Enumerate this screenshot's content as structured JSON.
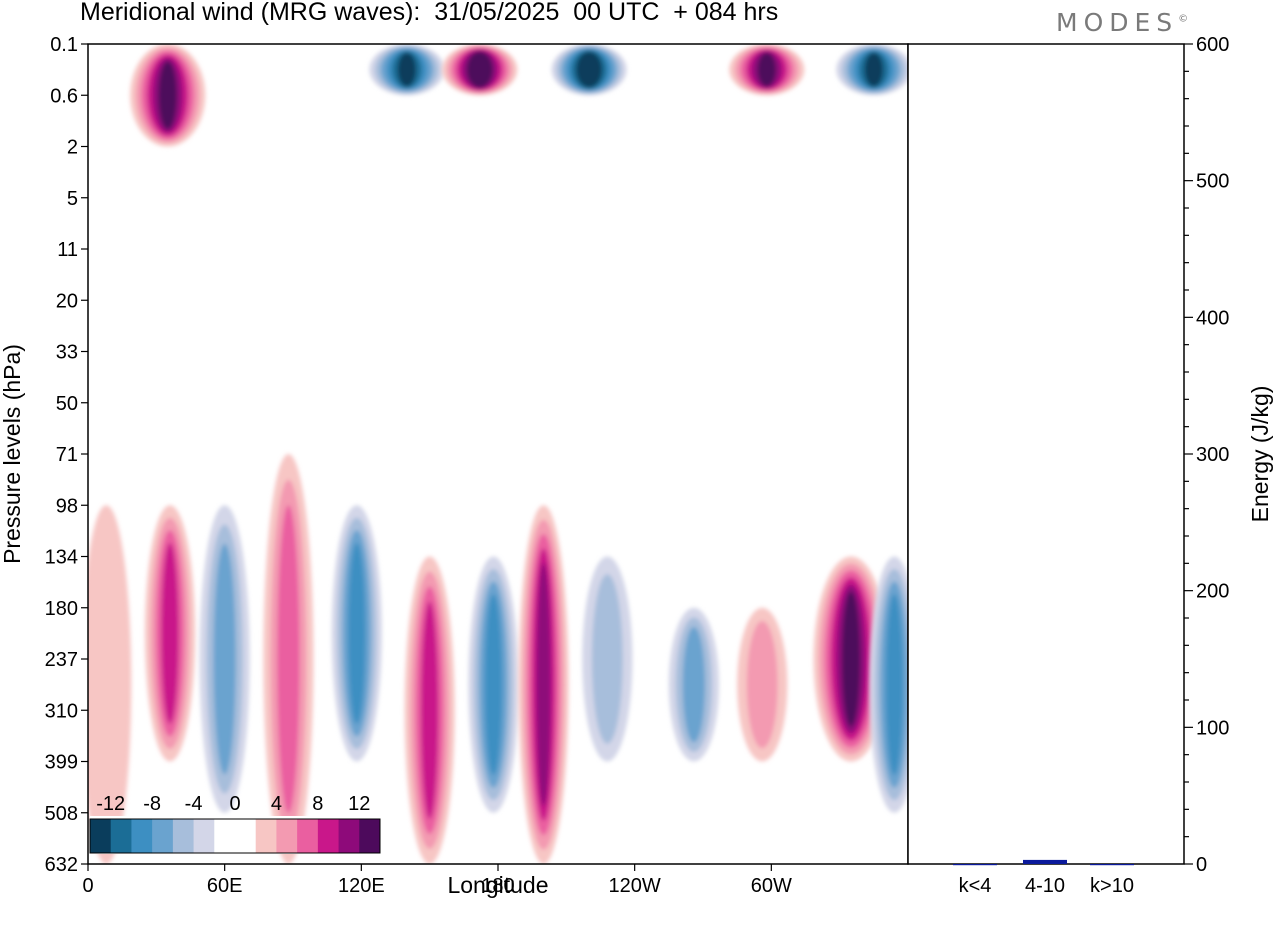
{
  "title": "Meridional wind (MRG waves):  31/05/2025  00 UTC  + 084 hrs",
  "brand": "MODES",
  "brand_mark": "©",
  "chart_data": [
    {
      "type": "heatmap",
      "xlabel": "Longitude",
      "ylabel": "Pressure levels (hPa)",
      "x_ticks": [
        "0",
        "60E",
        "120E",
        "180",
        "120W",
        "60W"
      ],
      "x_tick_values": [
        0,
        60,
        120,
        180,
        240,
        300
      ],
      "xlim": [
        0,
        360
      ],
      "y_ticks": [
        "0.1",
        "0.6",
        "2",
        "5",
        "11",
        "20",
        "33",
        "50",
        "71",
        "98",
        "134",
        "180",
        "237",
        "310",
        "399",
        "508",
        "632"
      ],
      "colorbar_labels": [
        "-12",
        "-8",
        "-4",
        "0",
        "4",
        "8",
        "12"
      ],
      "colorbar_levels": [
        -14,
        -12,
        -10,
        -8,
        -6,
        -4,
        -2,
        0,
        2,
        4,
        6,
        8,
        10,
        12,
        14
      ],
      "colorbar_colors": [
        "#0a3d5c",
        "#1b6d96",
        "#3d8fc2",
        "#6aa3cf",
        "#a7bedb",
        "#d3d6e8",
        "#ffffff",
        "#ffffff",
        "#f7c6c4",
        "#f39ab1",
        "#ea5fa0",
        "#c9178a",
        "#8e0a7a",
        "#4d0a5c"
      ],
      "series": [
        {
          "name": "",
          "lon": 8,
          "lev_top": "98",
          "lev_bottom": "632",
          "value": 3
        },
        {
          "name": "",
          "lon": 36,
          "lev_top": "98",
          "lev_bottom": "399",
          "value": 9
        },
        {
          "name": "",
          "lon": 60,
          "lev_top": "98",
          "lev_bottom": "508",
          "value": -7
        },
        {
          "name": "",
          "lon": 88,
          "lev_top": "71",
          "lev_bottom": "632",
          "value": 6
        },
        {
          "name": "",
          "lon": 118,
          "lev_top": "98",
          "lev_bottom": "399",
          "value": -8
        },
        {
          "name": "",
          "lon": 150,
          "lev_top": "134",
          "lev_bottom": "632",
          "value": 8
        },
        {
          "name": "",
          "lon": 178,
          "lev_top": "134",
          "lev_bottom": "508",
          "value": -8
        },
        {
          "name": "",
          "lon": 200,
          "lev_top": "98",
          "lev_bottom": "632",
          "value": 10
        },
        {
          "name": "",
          "lon": 228,
          "lev_top": "134",
          "lev_bottom": "399",
          "value": -5
        },
        {
          "name": "",
          "lon": 266,
          "lev_top": "180",
          "lev_bottom": "399",
          "value": -7
        },
        {
          "name": "",
          "lon": 296,
          "lev_top": "180",
          "lev_bottom": "399",
          "value": 4
        },
        {
          "name": "",
          "lon": 335,
          "lev_top": "134",
          "lev_bottom": "399",
          "value": 13
        },
        {
          "name": "",
          "lon": 354,
          "lev_top": "134",
          "lev_bottom": "508",
          "value": -9
        },
        {
          "name": "",
          "lon": 35,
          "lev_top": "0.1",
          "lev_bottom": "2",
          "value": 12
        },
        {
          "name": "",
          "lon": 140,
          "lev_top": "0.1",
          "lev_bottom": "0.6",
          "value": -12
        },
        {
          "name": "",
          "lon": 172,
          "lev_top": "0.1",
          "lev_bottom": "0.6",
          "value": 14
        },
        {
          "name": "",
          "lon": 220,
          "lev_top": "0.1",
          "lev_bottom": "0.6",
          "value": -14
        },
        {
          "name": "",
          "lon": 298,
          "lev_top": "0.1",
          "lev_bottom": "0.6",
          "value": 13
        },
        {
          "name": "",
          "lon": 345,
          "lev_top": "0.1",
          "lev_bottom": "0.6",
          "value": -12
        }
      ]
    },
    {
      "type": "bar",
      "ylabel": "Energy (J/kg)",
      "categories": [
        "k<4",
        "4-10",
        "k>10"
      ],
      "values": [
        0,
        3,
        0
      ],
      "ylim": [
        0,
        600
      ],
      "y_ticks": [
        "0",
        "100",
        "200",
        "300",
        "400",
        "500",
        "600"
      ],
      "bar_color": "#0b1a9c"
    }
  ]
}
